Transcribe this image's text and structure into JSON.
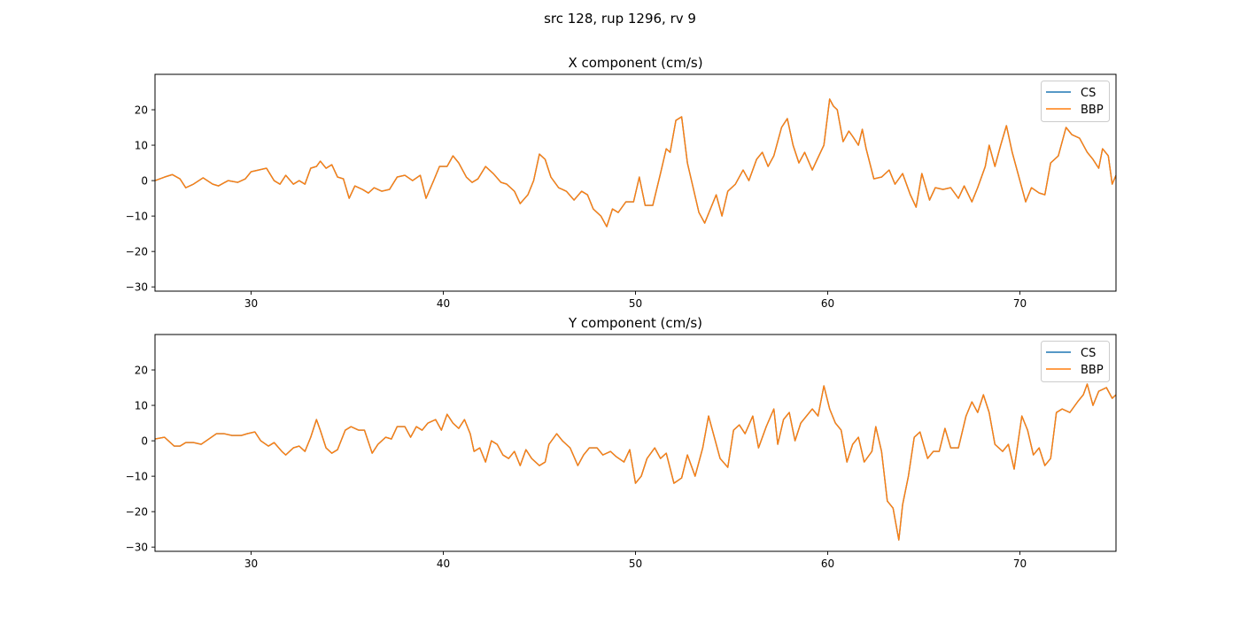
{
  "suptitle": "src 128, rup 1296, rv 9",
  "colors": {
    "CS": "#1f77b4",
    "BBP": "#ff7f0e"
  },
  "chart_data": [
    {
      "type": "line",
      "title": "X component (cm/s)",
      "xlim": [
        25,
        75
      ],
      "ylim": [
        -31.2,
        30
      ],
      "xticks": [
        30,
        40,
        50,
        60,
        70
      ],
      "yticks": [
        -30,
        -20,
        -10,
        0,
        10,
        20
      ],
      "grid": false,
      "legend": {
        "placement": "top-right",
        "entries": [
          "CS",
          "BBP"
        ]
      },
      "series": [
        {
          "name": "CS",
          "trace": "shared"
        },
        {
          "name": "BBP",
          "trace": "shared"
        }
      ],
      "points": [
        [
          25,
          0
        ],
        [
          25.5,
          1
        ],
        [
          25.9,
          1.7
        ],
        [
          26.3,
          0.5
        ],
        [
          26.6,
          -2
        ],
        [
          27,
          -1
        ],
        [
          27.5,
          0.8
        ],
        [
          28,
          -1
        ],
        [
          28.3,
          -1.5
        ],
        [
          28.8,
          0
        ],
        [
          29.3,
          -0.5
        ],
        [
          29.7,
          0.5
        ],
        [
          30,
          2.5
        ],
        [
          30.4,
          3
        ],
        [
          30.8,
          3.5
        ],
        [
          31.2,
          0
        ],
        [
          31.5,
          -1
        ],
        [
          31.8,
          1.5
        ],
        [
          32.2,
          -1
        ],
        [
          32.5,
          0
        ],
        [
          32.8,
          -1
        ],
        [
          33.1,
          3.5
        ],
        [
          33.4,
          4
        ],
        [
          33.6,
          5.5
        ],
        [
          33.9,
          3.5
        ],
        [
          34.2,
          4.5
        ],
        [
          34.5,
          1
        ],
        [
          34.8,
          0.5
        ],
        [
          35.1,
          -5
        ],
        [
          35.4,
          -1.5
        ],
        [
          35.8,
          -2.5
        ],
        [
          36.1,
          -3.5
        ],
        [
          36.4,
          -2
        ],
        [
          36.8,
          -3
        ],
        [
          37.2,
          -2.5
        ],
        [
          37.6,
          1
        ],
        [
          38,
          1.5
        ],
        [
          38.4,
          0
        ],
        [
          38.8,
          1.5
        ],
        [
          39.1,
          -5
        ],
        [
          39.5,
          0
        ],
        [
          39.8,
          4
        ],
        [
          40.2,
          4
        ],
        [
          40.5,
          7
        ],
        [
          40.8,
          5
        ],
        [
          41.2,
          1
        ],
        [
          41.5,
          -0.5
        ],
        [
          41.8,
          0.5
        ],
        [
          42.2,
          4
        ],
        [
          42.6,
          2
        ],
        [
          43,
          -0.5
        ],
        [
          43.3,
          -1
        ],
        [
          43.7,
          -3
        ],
        [
          44,
          -6.5
        ],
        [
          44.4,
          -4
        ],
        [
          44.7,
          0
        ],
        [
          45,
          7.5
        ],
        [
          45.3,
          6
        ],
        [
          45.6,
          1
        ],
        [
          46,
          -2
        ],
        [
          46.4,
          -3
        ],
        [
          46.8,
          -5.5
        ],
        [
          47.2,
          -3
        ],
        [
          47.5,
          -4
        ],
        [
          47.8,
          -8
        ],
        [
          48.2,
          -10
        ],
        [
          48.5,
          -13
        ],
        [
          48.8,
          -8
        ],
        [
          49.1,
          -9
        ],
        [
          49.5,
          -6
        ],
        [
          49.9,
          -6
        ],
        [
          50.2,
          1
        ],
        [
          50.5,
          -7
        ],
        [
          50.9,
          -7
        ],
        [
          51.3,
          2
        ],
        [
          51.6,
          9
        ],
        [
          51.8,
          8
        ],
        [
          52.1,
          17
        ],
        [
          52.4,
          18
        ],
        [
          52.7,
          5
        ],
        [
          53,
          -2
        ],
        [
          53.3,
          -9
        ],
        [
          53.6,
          -12
        ],
        [
          53.9,
          -8
        ],
        [
          54.2,
          -4
        ],
        [
          54.5,
          -10
        ],
        [
          54.8,
          -3
        ],
        [
          55.2,
          -1
        ],
        [
          55.6,
          3
        ],
        [
          55.9,
          0
        ],
        [
          56.3,
          6
        ],
        [
          56.6,
          8
        ],
        [
          56.9,
          4
        ],
        [
          57.2,
          7
        ],
        [
          57.6,
          15
        ],
        [
          57.9,
          17.5
        ],
        [
          58.2,
          10
        ],
        [
          58.5,
          5
        ],
        [
          58.8,
          8
        ],
        [
          59.2,
          3
        ],
        [
          59.5,
          6.5
        ],
        [
          59.8,
          10
        ],
        [
          60.1,
          23
        ],
        [
          60.3,
          21
        ],
        [
          60.5,
          20
        ],
        [
          60.8,
          11
        ],
        [
          61.1,
          14
        ],
        [
          61.3,
          12.5
        ],
        [
          61.6,
          10
        ],
        [
          61.8,
          14.5
        ],
        [
          62,
          9
        ],
        [
          62.4,
          0.5
        ],
        [
          62.8,
          1
        ],
        [
          63.2,
          3
        ],
        [
          63.5,
          -1
        ],
        [
          63.9,
          2
        ],
        [
          64.3,
          -4
        ],
        [
          64.6,
          -7.5
        ],
        [
          64.9,
          2
        ],
        [
          65.3,
          -5.5
        ],
        [
          65.6,
          -2
        ],
        [
          66,
          -2.5
        ],
        [
          66.4,
          -2
        ],
        [
          66.8,
          -5
        ],
        [
          67.1,
          -1.5
        ],
        [
          67.5,
          -6
        ],
        [
          67.8,
          -2
        ],
        [
          68.2,
          4
        ],
        [
          68.4,
          10
        ],
        [
          68.7,
          4
        ],
        [
          69,
          10
        ],
        [
          69.3,
          15.5
        ],
        [
          69.6,
          8
        ],
        [
          70,
          0
        ],
        [
          70.3,
          -6
        ],
        [
          70.6,
          -2
        ],
        [
          71,
          -3.5
        ],
        [
          71.3,
          -4
        ],
        [
          71.6,
          5
        ],
        [
          72,
          7
        ],
        [
          72.4,
          15
        ],
        [
          72.7,
          13
        ],
        [
          73.1,
          12
        ],
        [
          73.5,
          8
        ],
        [
          73.8,
          6
        ],
        [
          74.1,
          3.5
        ],
        [
          74.3,
          9
        ],
        [
          74.6,
          7
        ],
        [
          74.8,
          -1
        ],
        [
          75,
          1.5
        ]
      ]
    },
    {
      "type": "line",
      "title": "Y component (cm/s)",
      "xlim": [
        25,
        75
      ],
      "ylim": [
        -31.2,
        30
      ],
      "xticks": [
        30,
        40,
        50,
        60,
        70
      ],
      "yticks": [
        -30,
        -20,
        -10,
        0,
        10,
        20
      ],
      "grid": false,
      "legend": {
        "placement": "top-right",
        "entries": [
          "CS",
          "BBP"
        ]
      },
      "series": [
        {
          "name": "CS",
          "trace": "shared"
        },
        {
          "name": "BBP",
          "trace": "shared"
        }
      ],
      "points": [
        [
          25,
          0.5
        ],
        [
          25.5,
          1
        ],
        [
          26,
          -1.5
        ],
        [
          26.3,
          -1.5
        ],
        [
          26.6,
          -0.5
        ],
        [
          27,
          -0.5
        ],
        [
          27.4,
          -1
        ],
        [
          27.8,
          0.5
        ],
        [
          28.2,
          2
        ],
        [
          28.6,
          2
        ],
        [
          29,
          1.5
        ],
        [
          29.5,
          1.5
        ],
        [
          29.8,
          2
        ],
        [
          30.2,
          2.5
        ],
        [
          30.5,
          0
        ],
        [
          30.9,
          -1.5
        ],
        [
          31.2,
          -0.5
        ],
        [
          31.6,
          -3
        ],
        [
          31.8,
          -4
        ],
        [
          32.2,
          -2
        ],
        [
          32.5,
          -1.5
        ],
        [
          32.8,
          -3
        ],
        [
          33.1,
          1
        ],
        [
          33.4,
          6
        ],
        [
          33.6,
          3
        ],
        [
          33.9,
          -2
        ],
        [
          34.2,
          -3.5
        ],
        [
          34.5,
          -2.5
        ],
        [
          34.9,
          3
        ],
        [
          35.2,
          4
        ],
        [
          35.6,
          3
        ],
        [
          35.9,
          3
        ],
        [
          36.3,
          -3.5
        ],
        [
          36.6,
          -1
        ],
        [
          37,
          1
        ],
        [
          37.3,
          0.5
        ],
        [
          37.6,
          4
        ],
        [
          38,
          4
        ],
        [
          38.3,
          1
        ],
        [
          38.6,
          4
        ],
        [
          38.9,
          3
        ],
        [
          39.2,
          5
        ],
        [
          39.6,
          6
        ],
        [
          39.9,
          3
        ],
        [
          40.2,
          7.5
        ],
        [
          40.5,
          5
        ],
        [
          40.8,
          3.5
        ],
        [
          41.1,
          6
        ],
        [
          41.4,
          2
        ],
        [
          41.6,
          -3
        ],
        [
          41.9,
          -2
        ],
        [
          42.2,
          -6
        ],
        [
          42.5,
          0
        ],
        [
          42.8,
          -1
        ],
        [
          43.1,
          -4
        ],
        [
          43.4,
          -5
        ],
        [
          43.7,
          -3
        ],
        [
          44,
          -7
        ],
        [
          44.3,
          -2.5
        ],
        [
          44.6,
          -5
        ],
        [
          45,
          -7
        ],
        [
          45.3,
          -6
        ],
        [
          45.5,
          -1
        ],
        [
          45.9,
          2
        ],
        [
          46.2,
          0
        ],
        [
          46.6,
          -2
        ],
        [
          47,
          -7
        ],
        [
          47.3,
          -4
        ],
        [
          47.6,
          -2
        ],
        [
          48,
          -2
        ],
        [
          48.3,
          -4
        ],
        [
          48.7,
          -3
        ],
        [
          49,
          -4.5
        ],
        [
          49.4,
          -6
        ],
        [
          49.7,
          -2.5
        ],
        [
          50,
          -12
        ],
        [
          50.3,
          -10
        ],
        [
          50.6,
          -5
        ],
        [
          51,
          -2
        ],
        [
          51.3,
          -5
        ],
        [
          51.6,
          -3.5
        ],
        [
          52,
          -12
        ],
        [
          52.4,
          -10.5
        ],
        [
          52.7,
          -4
        ],
        [
          53.1,
          -10
        ],
        [
          53.5,
          -2
        ],
        [
          53.8,
          7
        ],
        [
          54.1,
          1
        ],
        [
          54.4,
          -5
        ],
        [
          54.8,
          -7.5
        ],
        [
          55.1,
          3
        ],
        [
          55.4,
          4.5
        ],
        [
          55.7,
          2
        ],
        [
          56.1,
          7
        ],
        [
          56.4,
          -2
        ],
        [
          56.8,
          4
        ],
        [
          57.2,
          9
        ],
        [
          57.4,
          -1
        ],
        [
          57.7,
          6
        ],
        [
          58,
          8
        ],
        [
          58.3,
          0
        ],
        [
          58.6,
          5
        ],
        [
          58.9,
          7
        ],
        [
          59.2,
          9
        ],
        [
          59.5,
          7
        ],
        [
          59.8,
          15.5
        ],
        [
          60.1,
          9
        ],
        [
          60.4,
          5
        ],
        [
          60.7,
          3
        ],
        [
          61,
          -6
        ],
        [
          61.3,
          -1
        ],
        [
          61.6,
          1
        ],
        [
          61.9,
          -6
        ],
        [
          62.3,
          -3
        ],
        [
          62.5,
          4
        ],
        [
          62.8,
          -3
        ],
        [
          63.1,
          -17
        ],
        [
          63.4,
          -19
        ],
        [
          63.7,
          -28
        ],
        [
          63.9,
          -18
        ],
        [
          64.2,
          -10
        ],
        [
          64.5,
          1
        ],
        [
          64.8,
          2.5
        ],
        [
          65.2,
          -5
        ],
        [
          65.5,
          -3
        ],
        [
          65.8,
          -3
        ],
        [
          66.1,
          3.5
        ],
        [
          66.4,
          -2
        ],
        [
          66.8,
          -2
        ],
        [
          67.2,
          7
        ],
        [
          67.5,
          11
        ],
        [
          67.8,
          8
        ],
        [
          68.1,
          13
        ],
        [
          68.4,
          8
        ],
        [
          68.7,
          -1
        ],
        [
          69.1,
          -3
        ],
        [
          69.4,
          -1
        ],
        [
          69.7,
          -8
        ],
        [
          70.1,
          7
        ],
        [
          70.4,
          3
        ],
        [
          70.7,
          -4
        ],
        [
          71,
          -2
        ],
        [
          71.3,
          -7
        ],
        [
          71.6,
          -5
        ],
        [
          71.9,
          8
        ],
        [
          72.2,
          9
        ],
        [
          72.6,
          8
        ],
        [
          73,
          11
        ],
        [
          73.3,
          13
        ],
        [
          73.5,
          16
        ],
        [
          73.8,
          10
        ],
        [
          74.1,
          14
        ],
        [
          74.5,
          15
        ],
        [
          74.8,
          12
        ],
        [
          75,
          13
        ]
      ]
    }
  ]
}
